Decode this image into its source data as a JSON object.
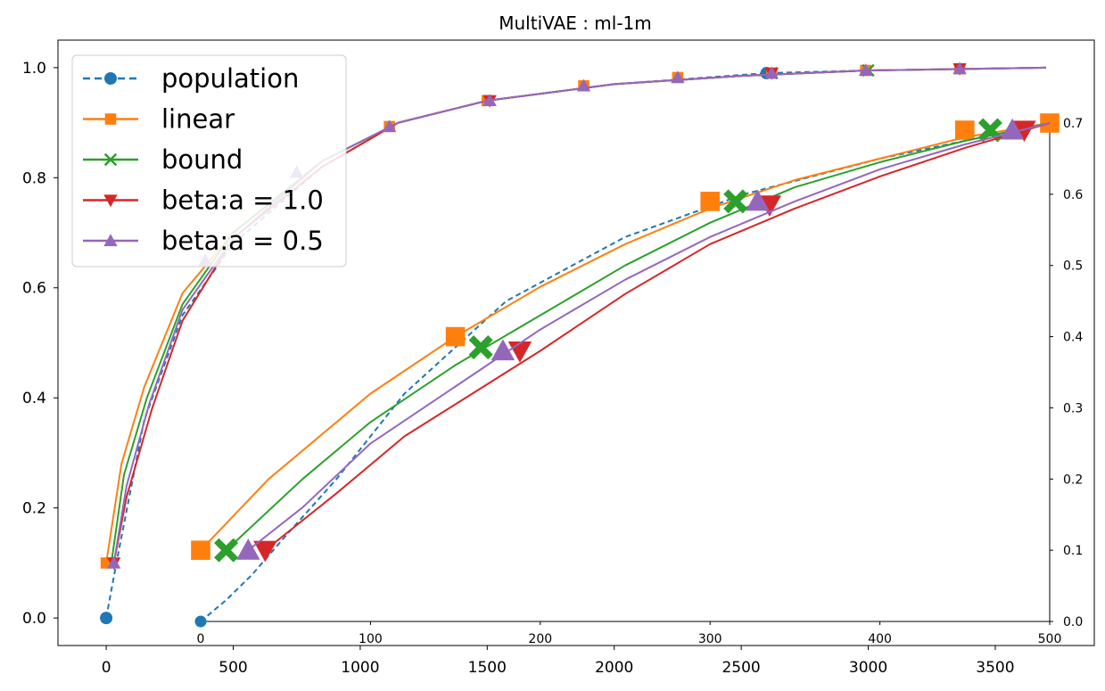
{
  "chart_data": {
    "type": "line",
    "title": "MultiVAE : ml-1m",
    "colors": {
      "population": "#1f77b4",
      "linear": "#ff7f0e",
      "bound": "#2ca02c",
      "beta_a_1_0": "#d62728",
      "beta_a_0_5": "#9467bd"
    },
    "main_axes": {
      "xlim": [
        -190,
        3890
      ],
      "ylim": [
        -0.05,
        1.05
      ],
      "xticks": [
        0,
        500,
        1000,
        1500,
        2000,
        2500,
        3000,
        3500
      ],
      "yticks": [
        0.0,
        0.2,
        0.4,
        0.6,
        0.8,
        1.0
      ],
      "xtick_labels": [
        "0",
        "500",
        "1000",
        "1500",
        "2000",
        "2500",
        "3000",
        "3500"
      ],
      "ytick_labels": [
        "0.0",
        "0.2",
        "0.4",
        "0.6",
        "0.8",
        "1.0"
      ],
      "series": [
        {
          "name": "population",
          "key": "population",
          "marker": "circle",
          "dashed": true,
          "x": [
            0,
            40,
            150,
            300,
            500,
            850,
            1150,
            1500,
            2000,
            2600,
            3000,
            3700
          ],
          "y": [
            0.0,
            0.1,
            0.36,
            0.55,
            0.68,
            0.82,
            0.9,
            0.94,
            0.97,
            0.99,
            0.995,
            1.0
          ],
          "markers_x": [
            0,
            2600
          ],
          "markers_y": [
            0.0,
            0.99
          ]
        },
        {
          "name": "linear",
          "key": "linear",
          "marker": "square",
          "dashed": false,
          "x": [
            0,
            60,
            150,
            300,
            500,
            850,
            1150,
            1500,
            2000,
            2500,
            3000,
            3700
          ],
          "y": [
            0.1,
            0.28,
            0.42,
            0.59,
            0.7,
            0.83,
            0.9,
            0.94,
            0.97,
            0.985,
            0.995,
            1.0
          ],
          "markers_x": [
            0,
            1115,
            1500,
            1880,
            2250,
            2620,
            2990,
            3360
          ],
          "markers_y": [
            0.1,
            0.893,
            0.94,
            0.967,
            0.982,
            0.99,
            0.995,
            0.998
          ]
        },
        {
          "name": "bound",
          "key": "bound",
          "marker": "x",
          "dashed": false,
          "x": [
            20,
            70,
            160,
            300,
            500,
            850,
            1150,
            1500,
            2000,
            2500,
            3000,
            3700
          ],
          "y": [
            0.1,
            0.26,
            0.4,
            0.57,
            0.7,
            0.83,
            0.9,
            0.94,
            0.97,
            0.985,
            0.995,
            1.0
          ],
          "markers_x": [
            2620,
            3000
          ],
          "markers_y": [
            0.99,
            0.995
          ]
        },
        {
          "name": "beta:a = 1.0",
          "key": "beta_a_1_0",
          "marker": "triangle-down",
          "dashed": false,
          "x": [
            30,
            80,
            180,
            300,
            500,
            850,
            1150,
            1500,
            2000,
            2500,
            3000,
            3700
          ],
          "y": [
            0.1,
            0.22,
            0.38,
            0.54,
            0.69,
            0.82,
            0.9,
            0.94,
            0.97,
            0.985,
            0.995,
            1.0
          ],
          "markers_x": [
            30,
            1510,
            2620,
            3360
          ],
          "markers_y": [
            0.1,
            0.94,
            0.99,
            0.998
          ]
        },
        {
          "name": "beta:a = 0.5",
          "key": "beta_a_0_5",
          "marker": "triangle-up",
          "dashed": false,
          "x": [
            30,
            80,
            170,
            300,
            500,
            850,
            1150,
            1500,
            2000,
            2500,
            3000,
            3700
          ],
          "y": [
            0.1,
            0.24,
            0.39,
            0.56,
            0.69,
            0.83,
            0.9,
            0.94,
            0.97,
            0.985,
            0.995,
            1.0
          ],
          "markers_x": [
            30,
            390,
            750,
            1115,
            1510,
            1880,
            2250,
            2620,
            2990,
            3360
          ],
          "markers_y": [
            0.1,
            0.65,
            0.81,
            0.893,
            0.94,
            0.967,
            0.982,
            0.99,
            0.995,
            0.998
          ]
        }
      ]
    },
    "inset_axes": {
      "xlim": [
        0,
        500
      ],
      "ylim": [
        0.0,
        0.7
      ],
      "xticks": [
        0,
        100,
        200,
        300,
        400,
        500
      ],
      "yticks": [
        0.0,
        0.1,
        0.2,
        0.3,
        0.4,
        0.5,
        0.6,
        0.7
      ],
      "xtick_labels": [
        "0",
        "100",
        "200",
        "300",
        "400",
        "500"
      ],
      "ytick_labels": [
        "0.0",
        "0.1",
        "0.2",
        "0.3",
        "0.4",
        "0.5",
        "0.6",
        "0.7"
      ],
      "series": [
        {
          "key": "population",
          "dashed": true,
          "x": [
            0,
            15,
            30,
            50,
            80,
            120,
            180,
            250,
            320,
            400,
            500
          ],
          "y": [
            0.0,
            0.03,
            0.065,
            0.12,
            0.2,
            0.32,
            0.45,
            0.54,
            0.6,
            0.65,
            0.7
          ],
          "markers_x": [],
          "markers_y": []
        },
        {
          "key": "linear",
          "dashed": false,
          "x": [
            0,
            40,
            70,
            100,
            150,
            200,
            250,
            300,
            350,
            400,
            450,
            500
          ],
          "y": [
            0.1,
            0.2,
            0.26,
            0.32,
            0.4,
            0.47,
            0.53,
            0.58,
            0.62,
            0.65,
            0.68,
            0.7
          ],
          "markers_x": [
            0,
            150,
            300,
            450,
            500
          ],
          "markers_y": [
            0.1,
            0.4,
            0.59,
            0.69,
            0.7
          ]
        },
        {
          "key": "bound",
          "dashed": false,
          "x": [
            15,
            60,
            100,
            150,
            200,
            250,
            300,
            350,
            400,
            450,
            500
          ],
          "y": [
            0.1,
            0.2,
            0.28,
            0.36,
            0.43,
            0.5,
            0.56,
            0.61,
            0.645,
            0.675,
            0.7
          ],
          "markers_x": [
            15,
            165,
            315,
            465
          ],
          "markers_y": [
            0.1,
            0.385,
            0.59,
            0.69
          ]
        },
        {
          "key": "beta_a_1_0",
          "dashed": false,
          "x": [
            38,
            80,
            120,
            160,
            200,
            250,
            300,
            350,
            400,
            450,
            500
          ],
          "y": [
            0.1,
            0.18,
            0.26,
            0.32,
            0.38,
            0.46,
            0.53,
            0.58,
            0.625,
            0.665,
            0.7
          ],
          "markers_x": [
            38,
            188,
            335,
            485
          ],
          "markers_y": [
            0.1,
            0.38,
            0.585,
            0.69
          ]
        },
        {
          "key": "beta_a_0_5",
          "dashed": false,
          "x": [
            28,
            60,
            100,
            150,
            200,
            250,
            300,
            350,
            400,
            450,
            500
          ],
          "y": [
            0.1,
            0.16,
            0.25,
            0.33,
            0.41,
            0.48,
            0.54,
            0.59,
            0.635,
            0.67,
            0.7
          ],
          "markers_x": [
            28,
            178,
            328,
            478
          ],
          "markers_y": [
            0.1,
            0.38,
            0.59,
            0.69
          ]
        }
      ]
    },
    "legend": {
      "placement": "top-left",
      "entries": [
        {
          "label": "population",
          "key": "population",
          "marker": "circle",
          "dashed": true
        },
        {
          "label": "linear",
          "key": "linear",
          "marker": "square",
          "dashed": false
        },
        {
          "label": "bound",
          "key": "bound",
          "marker": "x",
          "dashed": false
        },
        {
          "label": "beta:a = 1.0",
          "key": "beta_a_1_0",
          "marker": "triangle-down",
          "dashed": false
        },
        {
          "label": "beta:a = 0.5",
          "key": "beta_a_0_5",
          "marker": "triangle-up",
          "dashed": false
        }
      ]
    }
  }
}
